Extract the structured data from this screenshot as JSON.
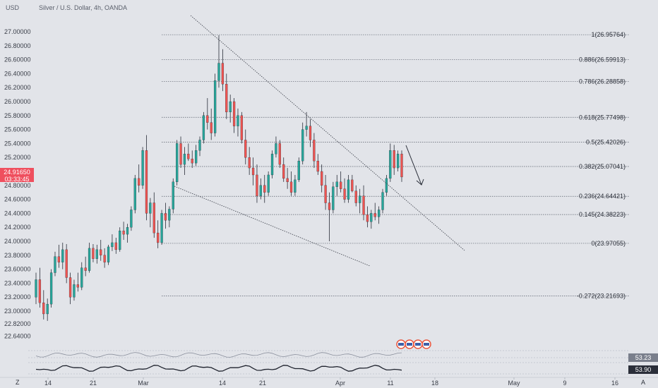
{
  "header": {
    "currency": "USD",
    "title": "Silver / U.S. Dollar, 4h, OANDA"
  },
  "price_tag": {
    "price": "24.91650",
    "countdown": "03:33:45",
    "color": "#ef4f5e"
  },
  "indicators": [
    {
      "value": "53.23",
      "color": "#7a7f8c"
    },
    {
      "value": "53.90",
      "color": "#2a2e39"
    }
  ],
  "bottom_bar": {
    "left": "Z",
    "right": "A"
  },
  "colors": {
    "up": "#26a69a",
    "down": "#ef5350",
    "wick": "#2a2e39",
    "background": "#e2e4e9"
  },
  "chart_data": {
    "type": "candlestick",
    "title": "Silver / U.S. Dollar, 4h, OANDA",
    "ylim": [
      22.52,
      27.16
    ],
    "y_ticks": [
      "27.00000",
      "26.80000",
      "26.60000",
      "26.40000",
      "26.20000",
      "26.00000",
      "25.80000",
      "25.60000",
      "25.40000",
      "25.20000",
      "25.00000",
      "24.80000",
      "24.60000",
      "24.40000",
      "24.20000",
      "24.00000",
      "23.80000",
      "23.60000",
      "23.40000",
      "23.20000",
      "23.00000",
      "22.82000",
      "22.64000"
    ],
    "x_ticks": [
      "14",
      "21",
      "Mar",
      "14",
      "21",
      "Apr",
      "11",
      "18",
      "May",
      "9",
      "16"
    ],
    "fib_levels": [
      {
        "label": "1(26.95764)",
        "value": 26.95764
      },
      {
        "label": "0.886(26.59913)",
        "value": 26.59913
      },
      {
        "label": "0.786(26.28858)",
        "value": 26.28858
      },
      {
        "label": "0.618(25.77498)",
        "value": 25.77498
      },
      {
        "label": "0.5(25.42026)",
        "value": 25.42026
      },
      {
        "label": "0.382(25.07041)",
        "value": 25.07041
      },
      {
        "label": "0.236(24.64421)",
        "value": 24.64421
      },
      {
        "label": "0.145(24.38223)",
        "value": 24.38223
      },
      {
        "label": "0(23.97055)",
        "value": 23.97055
      },
      {
        "label": "-0.272(23.21693)",
        "value": 23.21693
      }
    ],
    "candles": [
      [
        23.2,
        23.55,
        23.1,
        23.45
      ],
      [
        23.45,
        23.62,
        23.05,
        23.12
      ],
      [
        23.12,
        23.3,
        22.88,
        22.96
      ],
      [
        22.96,
        23.18,
        22.86,
        23.1
      ],
      [
        23.1,
        23.6,
        23.05,
        23.55
      ],
      [
        23.55,
        23.85,
        23.5,
        23.78
      ],
      [
        23.78,
        23.95,
        23.62,
        23.7
      ],
      [
        23.7,
        23.98,
        23.6,
        23.88
      ],
      [
        23.88,
        23.96,
        23.4,
        23.48
      ],
      [
        23.48,
        23.55,
        23.1,
        23.2
      ],
      [
        23.2,
        23.45,
        23.15,
        23.38
      ],
      [
        23.38,
        23.55,
        23.28,
        23.34
      ],
      [
        23.34,
        23.7,
        23.3,
        23.62
      ],
      [
        23.62,
        23.78,
        23.5,
        23.58
      ],
      [
        23.58,
        23.98,
        23.55,
        23.9
      ],
      [
        23.9,
        23.96,
        23.7,
        23.75
      ],
      [
        23.75,
        23.95,
        23.68,
        23.88
      ],
      [
        23.88,
        24.02,
        23.72,
        23.8
      ],
      [
        23.8,
        23.9,
        23.62,
        23.7
      ],
      [
        23.7,
        23.95,
        23.66,
        23.92
      ],
      [
        23.92,
        24.1,
        23.86,
        23.98
      ],
      [
        23.98,
        24.05,
        23.82,
        23.88
      ],
      [
        23.88,
        24.2,
        23.85,
        24.15
      ],
      [
        24.15,
        24.28,
        24.02,
        24.1
      ],
      [
        24.1,
        24.25,
        23.98,
        24.2
      ],
      [
        24.2,
        24.5,
        24.15,
        24.45
      ],
      [
        24.45,
        24.95,
        24.4,
        24.9
      ],
      [
        24.9,
        25.1,
        24.7,
        24.8
      ],
      [
        24.8,
        25.35,
        24.75,
        25.3
      ],
      [
        25.3,
        25.52,
        24.3,
        24.4
      ],
      [
        24.4,
        24.62,
        24.2,
        24.55
      ],
      [
        24.55,
        24.7,
        24.05,
        24.12
      ],
      [
        24.12,
        24.3,
        23.9,
        23.98
      ],
      [
        23.98,
        24.45,
        23.95,
        24.4
      ],
      [
        24.4,
        24.55,
        24.18,
        24.3
      ],
      [
        24.3,
        24.5,
        24.2,
        24.46
      ],
      [
        24.46,
        24.9,
        24.4,
        24.85
      ],
      [
        24.85,
        25.45,
        24.8,
        25.4
      ],
      [
        25.4,
        25.5,
        25.05,
        25.1
      ],
      [
        25.1,
        25.35,
        24.95,
        25.25
      ],
      [
        25.25,
        25.4,
        25.15,
        25.18
      ],
      [
        25.18,
        25.3,
        25.05,
        25.12
      ],
      [
        25.12,
        25.38,
        25.08,
        25.3
      ],
      [
        25.3,
        25.5,
        25.22,
        25.45
      ],
      [
        25.45,
        25.85,
        25.4,
        25.8
      ],
      [
        25.8,
        26.05,
        25.6,
        25.7
      ],
      [
        25.7,
        25.9,
        25.45,
        25.55
      ],
      [
        25.55,
        26.4,
        25.5,
        26.3
      ],
      [
        26.3,
        26.95,
        26.2,
        26.55
      ],
      [
        26.55,
        26.75,
        26.15,
        26.25
      ],
      [
        26.25,
        26.4,
        25.75,
        25.85
      ],
      [
        25.85,
        26.1,
        25.7,
        26.0
      ],
      [
        26.0,
        26.05,
        25.55,
        25.65
      ],
      [
        25.65,
        25.9,
        25.5,
        25.8
      ],
      [
        25.8,
        25.85,
        25.4,
        25.45
      ],
      [
        25.45,
        25.6,
        25.1,
        25.2
      ],
      [
        25.2,
        25.35,
        24.95,
        25.05
      ],
      [
        25.05,
        25.2,
        24.8,
        24.95
      ],
      [
        24.95,
        25.1,
        24.55,
        24.65
      ],
      [
        24.65,
        24.9,
        24.6,
        24.8
      ],
      [
        24.8,
        24.95,
        24.55,
        24.7
      ],
      [
        24.7,
        25.0,
        24.65,
        24.95
      ],
      [
        24.95,
        25.3,
        24.9,
        25.25
      ],
      [
        25.25,
        25.5,
        25.2,
        25.4
      ],
      [
        25.4,
        25.45,
        25.05,
        25.1
      ],
      [
        25.1,
        25.2,
        24.85,
        24.9
      ],
      [
        24.9,
        25.05,
        24.75,
        24.85
      ],
      [
        24.85,
        25.0,
        24.65,
        24.7
      ],
      [
        24.7,
        24.95,
        24.65,
        24.88
      ],
      [
        24.88,
        25.2,
        24.85,
        25.15
      ],
      [
        25.15,
        25.7,
        25.1,
        25.6
      ],
      [
        25.6,
        25.85,
        25.5,
        25.65
      ],
      [
        25.65,
        25.75,
        25.35,
        25.45
      ],
      [
        25.45,
        25.55,
        25.05,
        25.15
      ],
      [
        25.15,
        25.25,
        24.95,
        25.0
      ],
      [
        25.0,
        25.1,
        24.7,
        24.8
      ],
      [
        24.8,
        24.95,
        24.45,
        24.55
      ],
      [
        24.55,
        24.7,
        24.0,
        24.45
      ],
      [
        24.45,
        24.85,
        24.4,
        24.78
      ],
      [
        24.78,
        24.95,
        24.65,
        24.85
      ],
      [
        24.85,
        25.0,
        24.7,
        24.75
      ],
      [
        24.75,
        24.9,
        24.55,
        24.6
      ],
      [
        24.6,
        24.95,
        24.55,
        24.88
      ],
      [
        24.88,
        24.95,
        24.7,
        24.72
      ],
      [
        24.72,
        24.8,
        24.5,
        24.55
      ],
      [
        24.55,
        24.75,
        24.4,
        24.65
      ],
      [
        24.65,
        24.8,
        24.3,
        24.38
      ],
      [
        24.38,
        24.5,
        24.2,
        24.28
      ],
      [
        24.28,
        24.45,
        24.18,
        24.4
      ],
      [
        24.4,
        24.55,
        24.3,
        24.35
      ],
      [
        24.35,
        24.5,
        24.25,
        24.45
      ],
      [
        24.45,
        24.75,
        24.4,
        24.7
      ],
      [
        24.7,
        24.95,
        24.65,
        24.9
      ],
      [
        24.9,
        25.4,
        24.85,
        25.3
      ],
      [
        25.3,
        25.38,
        24.95,
        25.05
      ],
      [
        25.05,
        25.3,
        25.0,
        25.25
      ],
      [
        25.25,
        25.3,
        24.85,
        24.92
      ]
    ]
  }
}
